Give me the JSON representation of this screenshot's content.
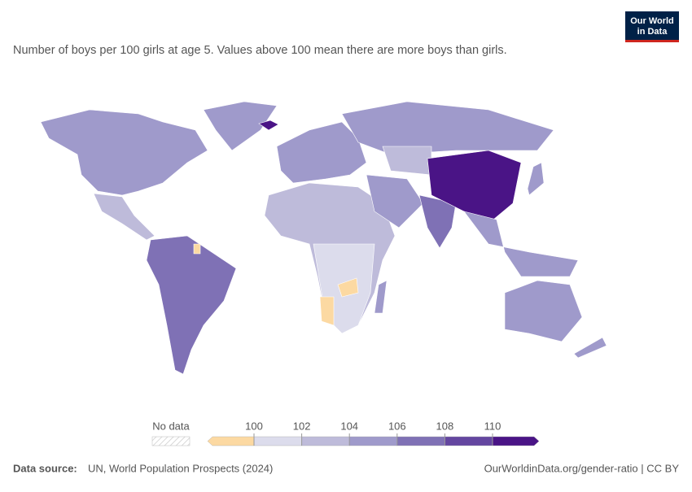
{
  "header": {
    "subtitle": "Number of boys per 100 girls at age 5. Values above 100 mean there are more boys than girls.",
    "logo": [
      "Our World",
      "in Data"
    ]
  },
  "legend": {
    "no_data": "No data",
    "ticks": [
      100,
      102,
      104,
      106,
      108,
      110
    ],
    "colors": [
      "#fcd9a2",
      "#dcdcec",
      "#bebbda",
      "#9f9acb",
      "#7f71b5",
      "#6446a0",
      "#4a1486"
    ]
  },
  "footer": {
    "source_label": "Data source:",
    "source": "UN, World Population Prospects (2024)",
    "url": "OurWorldinData.org/gender-ratio | CC BY"
  }
}
